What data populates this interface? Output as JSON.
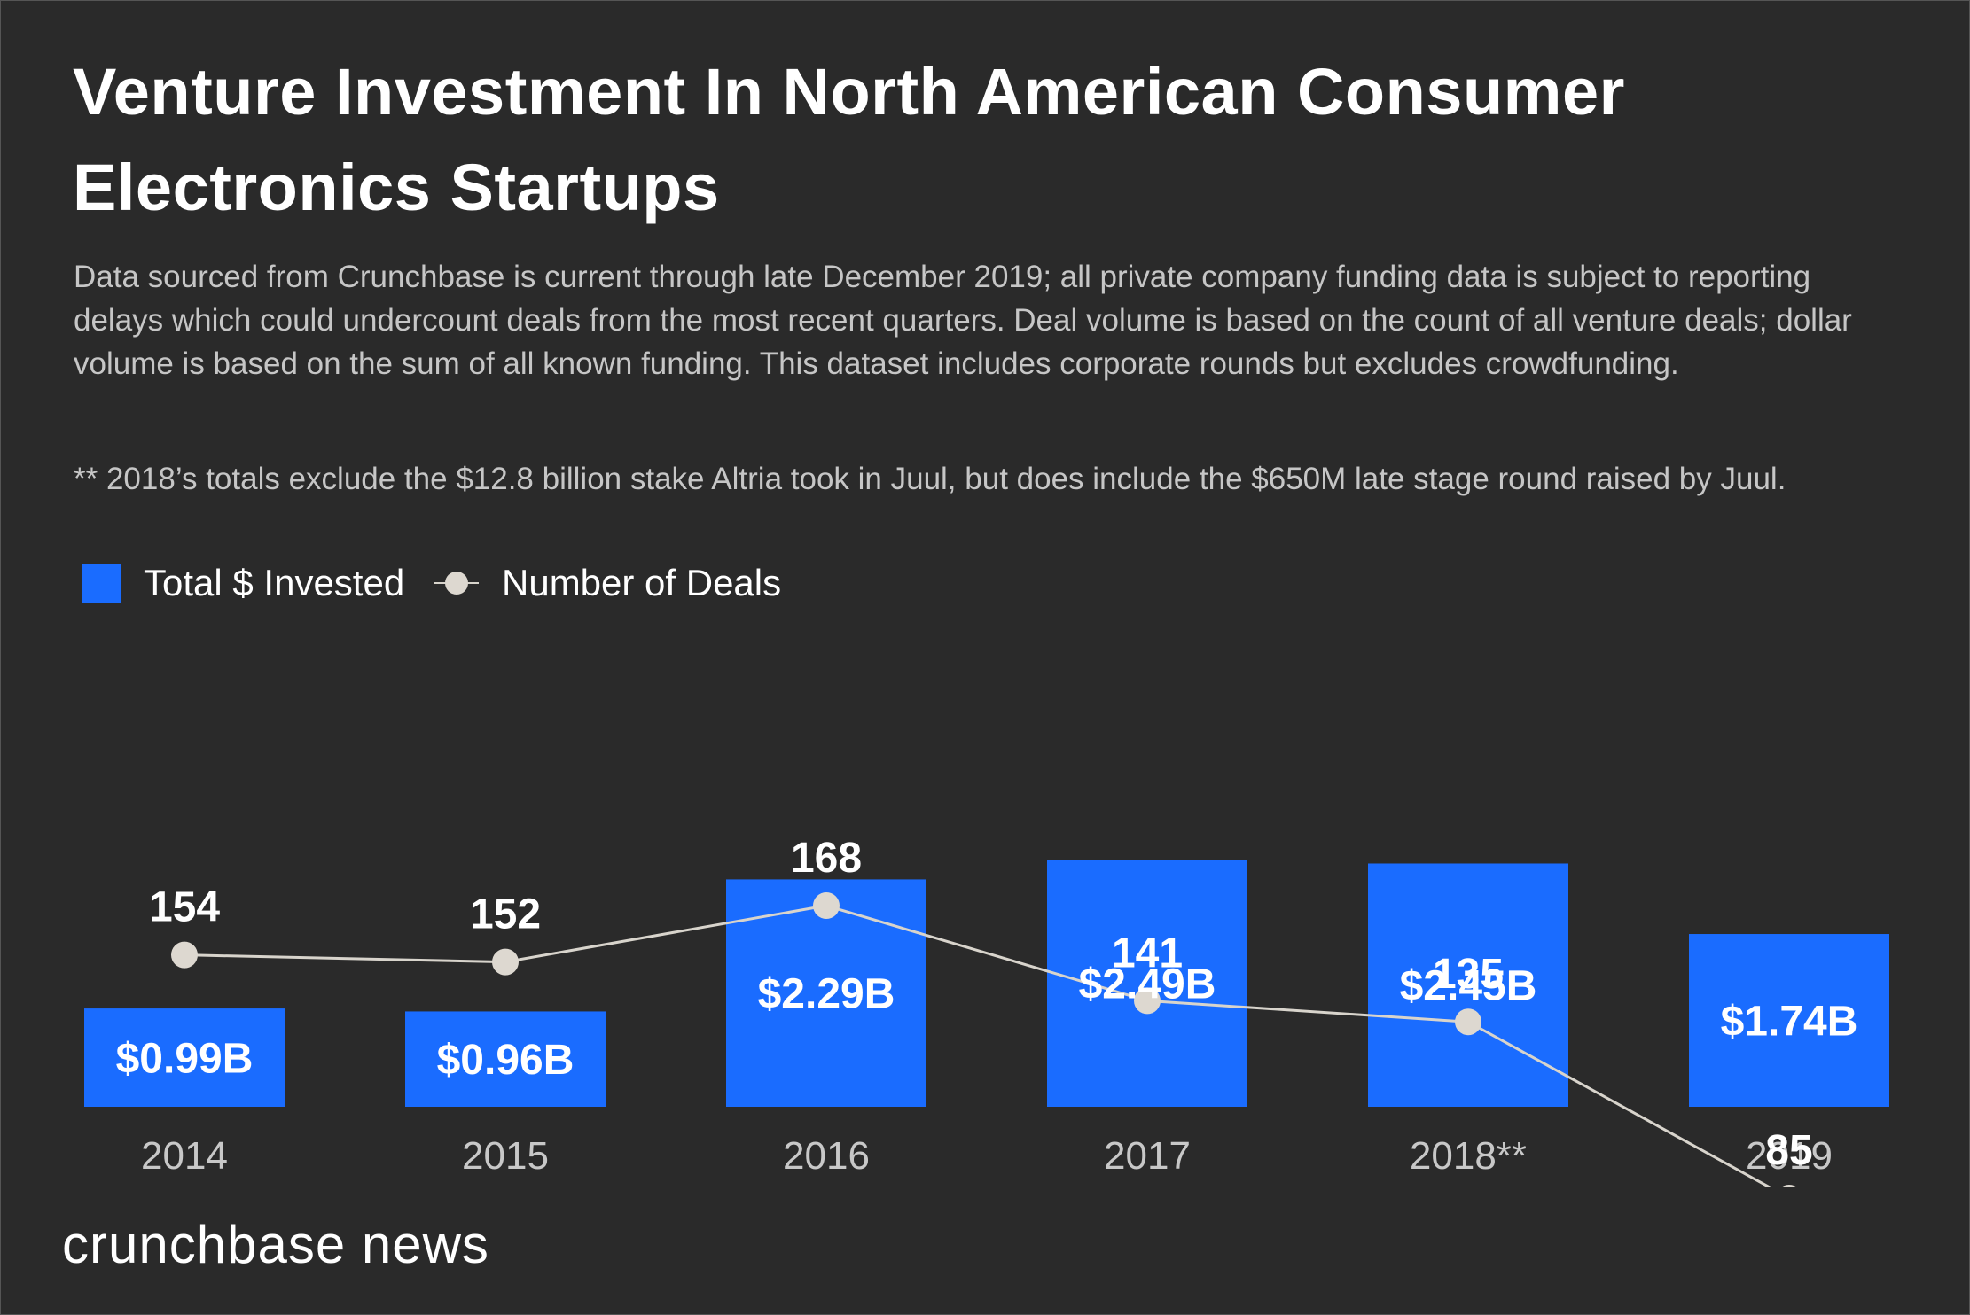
{
  "header": {
    "title_line1": "Venture Investment In North American Consumer",
    "title_line2": "Electronics Startups",
    "description": "Data sourced from Crunchbase is current through late December 2019; all private company funding data is subject to reporting delays which could undercount deals from the most recent quarters. Deal volume is based on the count of all venture deals; dollar volume is based on the sum of all known funding. This dataset includes corporate rounds but excludes crowdfunding.",
    "note": "** 2018’s totals exclude the $12.8 billion stake Altria took in Juul, but does include the $650M late stage round raised by Juul."
  },
  "legend": {
    "bars_label": "Total $ Invested",
    "line_label": "Number of Deals"
  },
  "colors": {
    "background": "#2a2a2a",
    "bar": "#1a6cff",
    "line": "#d8d4cc",
    "marker": "#ddd8d0",
    "axis_text": "#c8c8c8"
  },
  "chart_data": {
    "type": "bar",
    "title": "Venture Investment In North American Consumer Electronics Startups",
    "categories": [
      "2014",
      "2015",
      "2016",
      "2017",
      "2018**",
      "2019"
    ],
    "series": [
      {
        "name": "Total $ Invested",
        "kind": "bar",
        "unit": "billion USD",
        "values": [
          0.99,
          0.96,
          2.29,
          2.49,
          2.45,
          1.74
        ],
        "labels": [
          "$0.99B",
          "$0.96B",
          "$2.29B",
          "$2.49B",
          "$2.45B",
          "$1.74B"
        ]
      },
      {
        "name": "Number of Deals",
        "kind": "line",
        "values": [
          154,
          152,
          168,
          141,
          135,
          85
        ],
        "labels": [
          "154",
          "152",
          "168",
          "141",
          "135",
          "85"
        ]
      }
    ],
    "xlabel": "",
    "ylabel": "",
    "grid": false,
    "legend_position": "top-left"
  },
  "footer": {
    "brand": "crunchbase news"
  }
}
